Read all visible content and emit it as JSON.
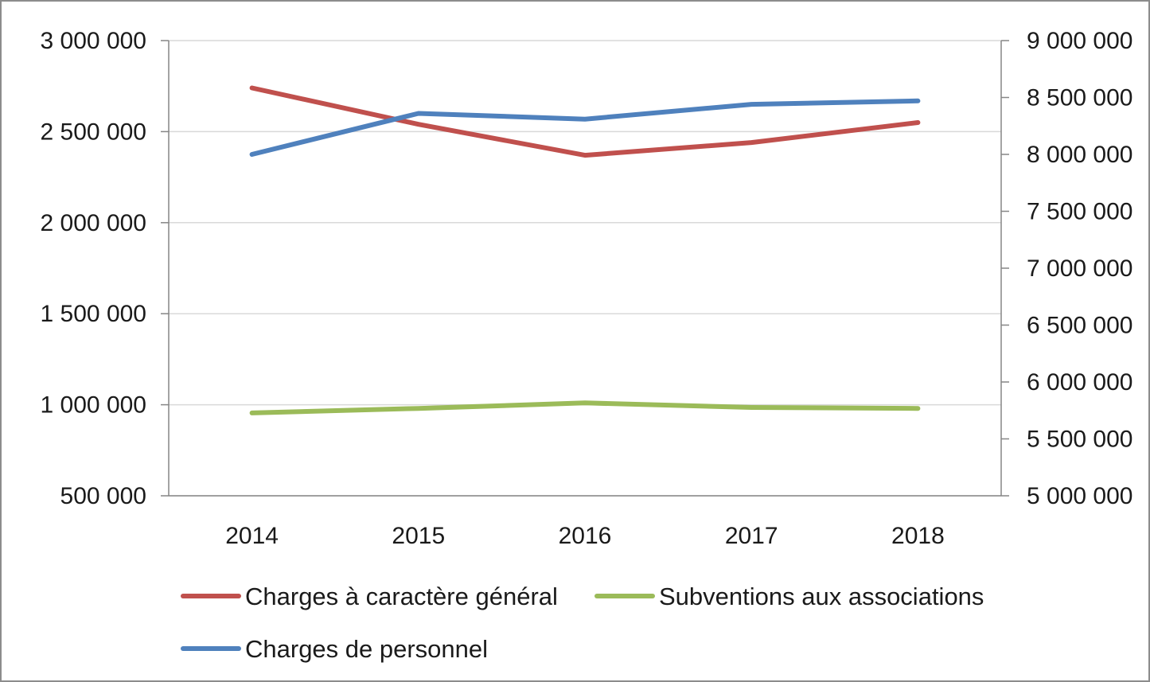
{
  "chart_data": {
    "type": "line",
    "title": "",
    "xlabel": "",
    "ylabel": "",
    "categories": [
      "2014",
      "2015",
      "2016",
      "2017",
      "2018"
    ],
    "y_left": {
      "ylim": [
        500000,
        3000000
      ],
      "ticks": [
        3000000,
        2500000,
        2000000,
        1500000,
        1000000,
        500000
      ],
      "tick_labels": [
        "3 000 000",
        "2 500 000",
        "2 000 000",
        "1 500 000",
        "1 000 000",
        "500 000"
      ]
    },
    "y_right": {
      "ylim": [
        5000000,
        9000000
      ],
      "ticks": [
        9000000,
        8500000,
        8000000,
        7500000,
        7000000,
        6500000,
        6000000,
        5500000,
        5000000
      ],
      "tick_labels": [
        "9 000 000",
        "8 500 000",
        "8 000 000",
        "7 500 000",
        "7 000 000",
        "6 500 000",
        "6 000 000",
        "5 500 000",
        "5 000 000"
      ]
    },
    "grid": true,
    "legend_position": "bottom",
    "series": [
      {
        "name": "Charges à caractère général",
        "axis": "left",
        "color": "#c0504d",
        "values": [
          2740000,
          2540000,
          2370000,
          2440000,
          2550000
        ]
      },
      {
        "name": "Subventions aux associations",
        "axis": "left",
        "color": "#9bbb59",
        "values": [
          955000,
          980000,
          1010000,
          985000,
          980000
        ]
      },
      {
        "name": "Charges de personnel",
        "axis": "right",
        "color": "#4f81bd",
        "values": [
          8000000,
          8360000,
          8310000,
          8440000,
          8470000
        ]
      }
    ]
  }
}
